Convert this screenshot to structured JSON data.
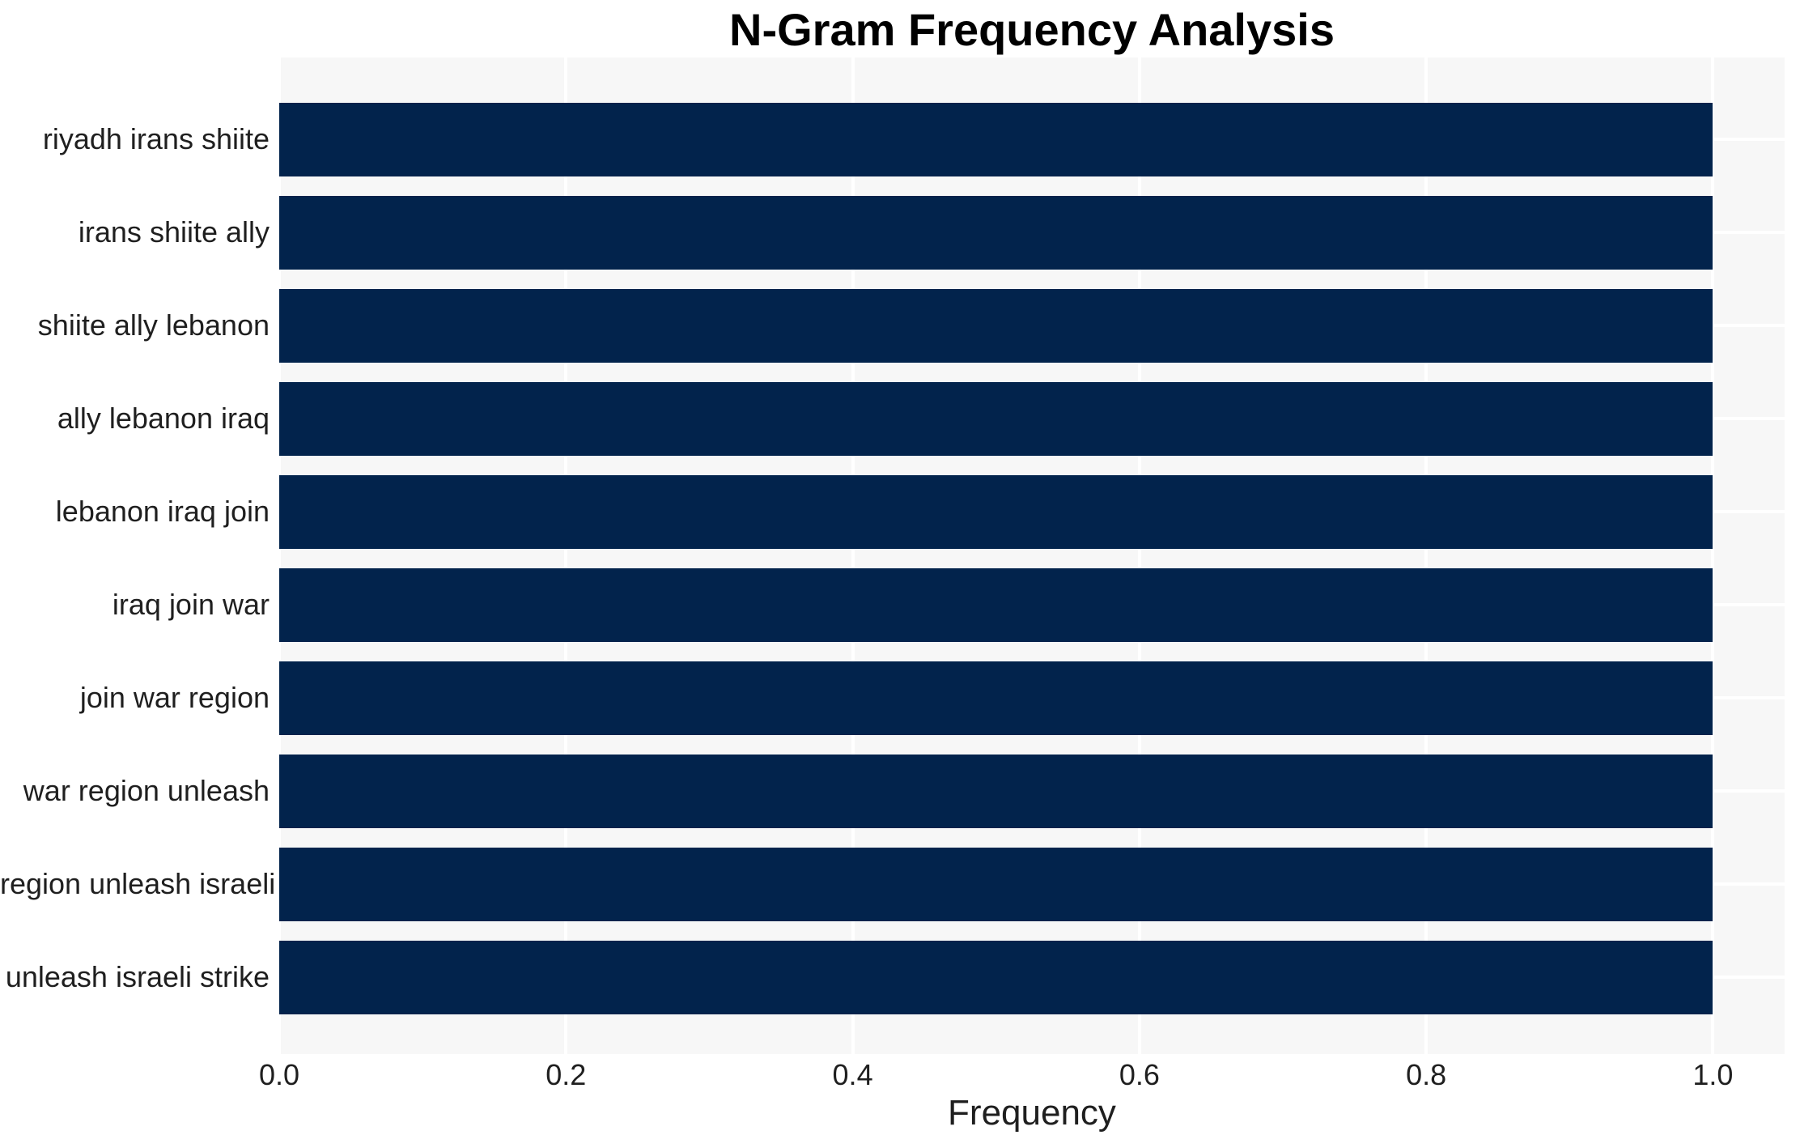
{
  "chart_data": {
    "type": "bar",
    "orientation": "horizontal",
    "title": "N-Gram Frequency Analysis",
    "xlabel": "Frequency",
    "ylabel": "",
    "categories": [
      "riyadh irans shiite",
      "irans shiite ally",
      "shiite ally lebanon",
      "ally lebanon iraq",
      "lebanon iraq join",
      "iraq join war",
      "join war region",
      "war region unleash",
      "region unleash israeli",
      "unleash israeli strike"
    ],
    "values": [
      1.0,
      1.0,
      1.0,
      1.0,
      1.0,
      1.0,
      1.0,
      1.0,
      1.0,
      1.0
    ],
    "xlim": [
      0,
      1.05
    ],
    "xticks": [
      0.0,
      0.2,
      0.4,
      0.6,
      0.8,
      1.0
    ],
    "xtick_labels": [
      "0.0",
      "0.2",
      "0.4",
      "0.6",
      "0.8",
      "1.0"
    ],
    "grid": true,
    "legend_position": "none",
    "colors": {
      "bar": "#02234c",
      "plot_background": "#f7f7f7",
      "figure_background": "#ffffff",
      "grid": "#ffffff",
      "text": "#1f1f1f",
      "title": "#000000"
    }
  }
}
